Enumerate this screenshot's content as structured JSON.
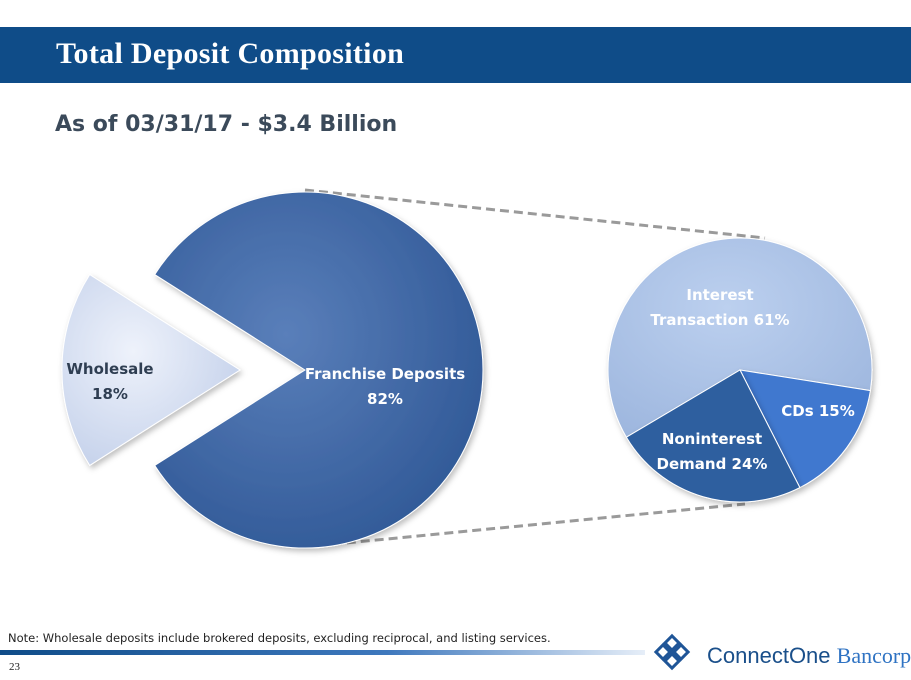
{
  "header": {
    "title": "Total Deposit Composition"
  },
  "subtitle": "As of 03/31/17 - $3.4 Billion",
  "footer": {
    "note": "Note: Wholesale deposits include brokered deposits, excluding reciprocal, and listing services.",
    "page_number": "23",
    "logo_part1": "ConnectOne",
    "logo_part2": "Bancorp"
  },
  "colors": {
    "title_bar": "#0f4c88",
    "franchise": "#3a64a4",
    "wholesale": "#cfdaf0",
    "interest_transaction": "#a8c0e4",
    "cds": "#3f78cf",
    "noninterest_demand": "#2f5f9f"
  },
  "chart_data": [
    {
      "type": "pie",
      "slices": [
        {
          "label": "Franchise Deposits",
          "value_label": "82%",
          "value": 82
        },
        {
          "label": "Wholesale",
          "value_label": "18%",
          "value": 18
        }
      ]
    },
    {
      "type": "pie",
      "slices": [
        {
          "label": "Interest Transaction",
          "value_label": "61%",
          "value": 61
        },
        {
          "label": "CDs",
          "value_label": "15%",
          "value": 15
        },
        {
          "label": "Noninterest Demand",
          "value_label": "24%",
          "value": 24
        }
      ]
    }
  ]
}
